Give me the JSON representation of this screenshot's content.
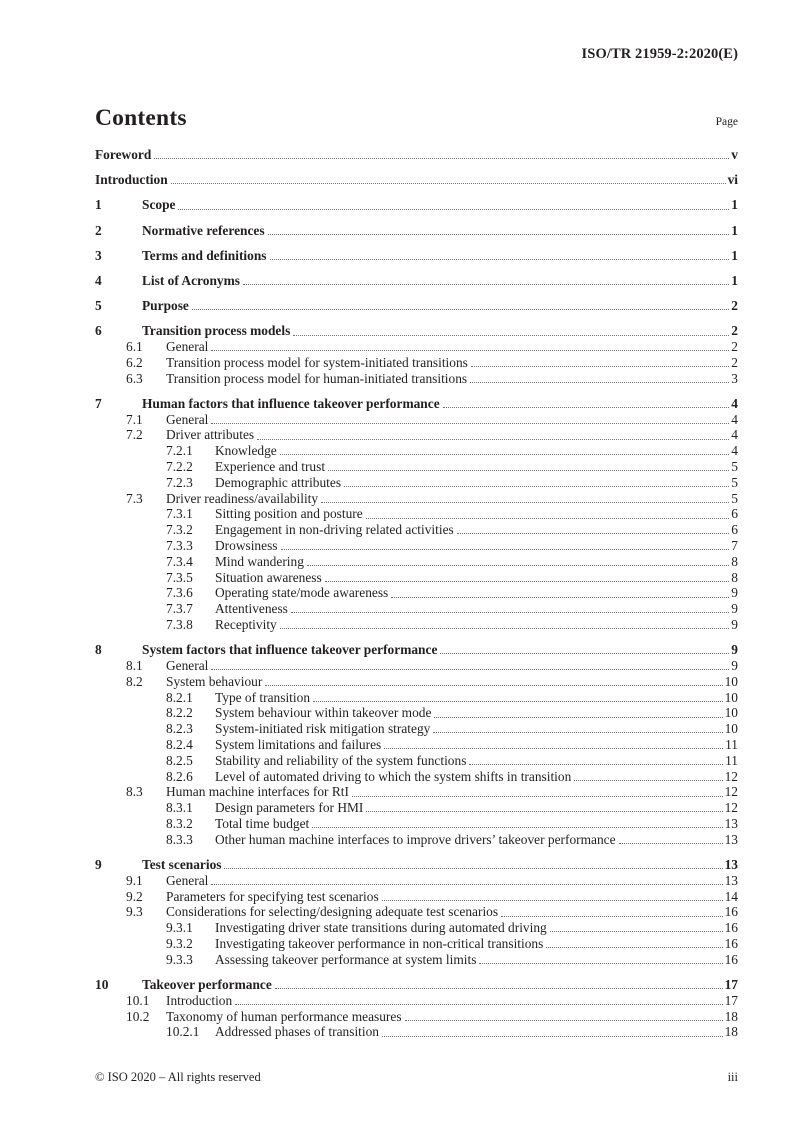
{
  "page": {
    "header_ref": "ISO/TR 21959-2:2020(E)",
    "contents_title": "Contents",
    "page_column_label": "Page",
    "footer_left": "© ISO 2020 – All rights reserved",
    "footer_right": "iii"
  },
  "colors": {
    "text": "#231f20",
    "leader_dots": "#707073",
    "background": "#ffffff"
  },
  "toc": {
    "entries": [
      {
        "level": "front",
        "num": "",
        "title": "Foreword",
        "page": "v"
      },
      {
        "level": "front",
        "num": "",
        "title": "Introduction",
        "page": "vi"
      },
      {
        "level": "1",
        "num": "1",
        "title": "Scope",
        "page": "1"
      },
      {
        "level": "1",
        "num": "2",
        "title": "Normative references",
        "page": "1"
      },
      {
        "level": "1",
        "num": "3",
        "title": "Terms and definitions",
        "page": "1"
      },
      {
        "level": "1",
        "num": "4",
        "title": "List of Acronyms",
        "page": "1"
      },
      {
        "level": "1",
        "num": "5",
        "title": "Purpose",
        "page": "2"
      },
      {
        "level": "1",
        "num": "6",
        "title": "Transition process models",
        "page": "2"
      },
      {
        "level": "2",
        "num": "6.1",
        "title": "General",
        "page": "2"
      },
      {
        "level": "2",
        "num": "6.2",
        "title": "Transition process model for system-initiated transitions",
        "page": "2"
      },
      {
        "level": "2",
        "num": "6.3",
        "title": "Transition process model for human-initiated transitions",
        "page": "3"
      },
      {
        "level": "1",
        "num": "7",
        "title": "Human factors that influence takeover performance",
        "page": "4"
      },
      {
        "level": "2",
        "num": "7.1",
        "title": "General",
        "page": "4"
      },
      {
        "level": "2",
        "num": "7.2",
        "title": "Driver attributes",
        "page": "4"
      },
      {
        "level": "3",
        "num": "7.2.1",
        "title": "Knowledge",
        "page": "4"
      },
      {
        "level": "3",
        "num": "7.2.2",
        "title": "Experience and trust",
        "page": "5"
      },
      {
        "level": "3",
        "num": "7.2.3",
        "title": "Demographic attributes",
        "page": "5"
      },
      {
        "level": "2",
        "num": "7.3",
        "title": "Driver readiness/availability",
        "page": "5"
      },
      {
        "level": "3",
        "num": "7.3.1",
        "title": "Sitting position and posture",
        "page": "6"
      },
      {
        "level": "3",
        "num": "7.3.2",
        "title": "Engagement in non-driving related activities",
        "page": "6"
      },
      {
        "level": "3",
        "num": "7.3.3",
        "title": "Drowsiness",
        "page": "7"
      },
      {
        "level": "3",
        "num": "7.3.4",
        "title": "Mind wandering",
        "page": "8"
      },
      {
        "level": "3",
        "num": "7.3.5",
        "title": "Situation awareness",
        "page": "8"
      },
      {
        "level": "3",
        "num": "7.3.6",
        "title": "Operating state/mode awareness",
        "page": "9"
      },
      {
        "level": "3",
        "num": "7.3.7",
        "title": "Attentiveness",
        "page": "9"
      },
      {
        "level": "3",
        "num": "7.3.8",
        "title": "Receptivity",
        "page": "9"
      },
      {
        "level": "1",
        "num": "8",
        "title": "System factors that influence takeover performance",
        "page": "9"
      },
      {
        "level": "2",
        "num": "8.1",
        "title": "General",
        "page": "9"
      },
      {
        "level": "2",
        "num": "8.2",
        "title": "System behaviour",
        "page": "10"
      },
      {
        "level": "3",
        "num": "8.2.1",
        "title": "Type of transition",
        "page": "10"
      },
      {
        "level": "3",
        "num": "8.2.2",
        "title": "System behaviour within takeover mode",
        "page": "10"
      },
      {
        "level": "3",
        "num": "8.2.3",
        "title": "System-initiated risk mitigation strategy",
        "page": "10"
      },
      {
        "level": "3",
        "num": "8.2.4",
        "title": "System limitations and failures",
        "page": "11"
      },
      {
        "level": "3",
        "num": "8.2.5",
        "title": "Stability and reliability of the system functions",
        "page": "11"
      },
      {
        "level": "3",
        "num": "8.2.6",
        "title": "Level of automated driving to which the system shifts in transition",
        "page": "12"
      },
      {
        "level": "2",
        "num": "8.3",
        "title": "Human machine interfaces for RtI",
        "page": "12"
      },
      {
        "level": "3",
        "num": "8.3.1",
        "title": "Design parameters for HMI",
        "page": "12"
      },
      {
        "level": "3",
        "num": "8.3.2",
        "title": "Total time budget",
        "page": "13"
      },
      {
        "level": "3",
        "num": "8.3.3",
        "title": "Other human machine interfaces to improve drivers’ takeover performance",
        "page": "13"
      },
      {
        "level": "1",
        "num": "9",
        "title": "Test scenarios",
        "page": "13"
      },
      {
        "level": "2",
        "num": "9.1",
        "title": "General",
        "page": "13"
      },
      {
        "level": "2",
        "num": "9.2",
        "title": "Parameters for specifying test scenarios",
        "page": "14"
      },
      {
        "level": "2",
        "num": "9.3",
        "title": "Considerations for selecting/designing adequate test scenarios",
        "page": "16"
      },
      {
        "level": "3",
        "num": "9.3.1",
        "title": "Investigating driver state transitions during automated driving",
        "page": "16"
      },
      {
        "level": "3",
        "num": "9.3.2",
        "title": "Investigating takeover performance in non-critical transitions",
        "page": "16"
      },
      {
        "level": "3",
        "num": "9.3.3",
        "title": "Assessing takeover performance at system limits",
        "page": "16"
      },
      {
        "level": "1",
        "num": "10",
        "title": "Takeover performance",
        "page": "17"
      },
      {
        "level": "2",
        "num": "10.1",
        "title": "Introduction",
        "page": "17"
      },
      {
        "level": "2",
        "num": "10.2",
        "title": "Taxonomy of human performance measures",
        "page": "18"
      },
      {
        "level": "3",
        "num": "10.2.1",
        "title": "Addressed phases of transition",
        "page": "18"
      }
    ]
  }
}
